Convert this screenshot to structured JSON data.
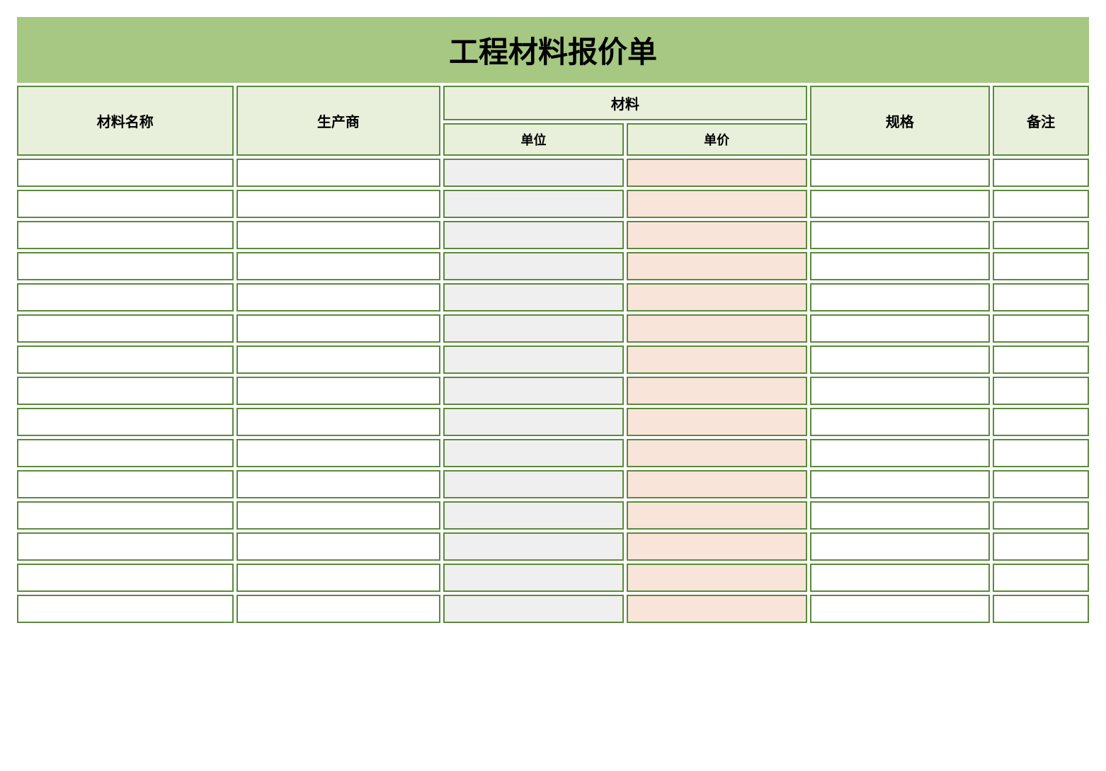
{
  "table": {
    "type": "table",
    "title": "工程材料报价单",
    "title_fontsize": 42,
    "title_bg_color": "#a6c882",
    "title_text_color": "#000000",
    "header_bg_color": "#e8f0dc",
    "header_text_color": "#000000",
    "header_fontsize_main": 20,
    "header_fontsize_sub": 18,
    "border_color": "#5b8a3c",
    "border_width": 2,
    "cell_bg_default": "#ffffff",
    "cell_bg_unit": "#efefef",
    "cell_bg_price": "#f9e4d9",
    "row_count": 15,
    "columns": {
      "name": {
        "label": "材料名称",
        "width_pct": 18
      },
      "manufacturer": {
        "label": "生产商",
        "width_pct": 17
      },
      "material_group": {
        "label": "材料",
        "width_pct": 30
      },
      "unit": {
        "label": "单位",
        "width_pct": 15
      },
      "price": {
        "label": "单价",
        "width_pct": 15
      },
      "spec": {
        "label": "规格",
        "width_pct": 15
      },
      "notes": {
        "label": "备注",
        "width_pct": 8
      }
    },
    "rows": [
      {
        "name": "",
        "manufacturer": "",
        "unit": "",
        "price": "",
        "spec": "",
        "notes": ""
      },
      {
        "name": "",
        "manufacturer": "",
        "unit": "",
        "price": "",
        "spec": "",
        "notes": ""
      },
      {
        "name": "",
        "manufacturer": "",
        "unit": "",
        "price": "",
        "spec": "",
        "notes": ""
      },
      {
        "name": "",
        "manufacturer": "",
        "unit": "",
        "price": "",
        "spec": "",
        "notes": ""
      },
      {
        "name": "",
        "manufacturer": "",
        "unit": "",
        "price": "",
        "spec": "",
        "notes": ""
      },
      {
        "name": "",
        "manufacturer": "",
        "unit": "",
        "price": "",
        "spec": "",
        "notes": ""
      },
      {
        "name": "",
        "manufacturer": "",
        "unit": "",
        "price": "",
        "spec": "",
        "notes": ""
      },
      {
        "name": "",
        "manufacturer": "",
        "unit": "",
        "price": "",
        "spec": "",
        "notes": ""
      },
      {
        "name": "",
        "manufacturer": "",
        "unit": "",
        "price": "",
        "spec": "",
        "notes": ""
      },
      {
        "name": "",
        "manufacturer": "",
        "unit": "",
        "price": "",
        "spec": "",
        "notes": ""
      },
      {
        "name": "",
        "manufacturer": "",
        "unit": "",
        "price": "",
        "spec": "",
        "notes": ""
      },
      {
        "name": "",
        "manufacturer": "",
        "unit": "",
        "price": "",
        "spec": "",
        "notes": ""
      },
      {
        "name": "",
        "manufacturer": "",
        "unit": "",
        "price": "",
        "spec": "",
        "notes": ""
      },
      {
        "name": "",
        "manufacturer": "",
        "unit": "",
        "price": "",
        "spec": "",
        "notes": ""
      },
      {
        "name": "",
        "manufacturer": "",
        "unit": "",
        "price": "",
        "spec": "",
        "notes": ""
      }
    ]
  }
}
